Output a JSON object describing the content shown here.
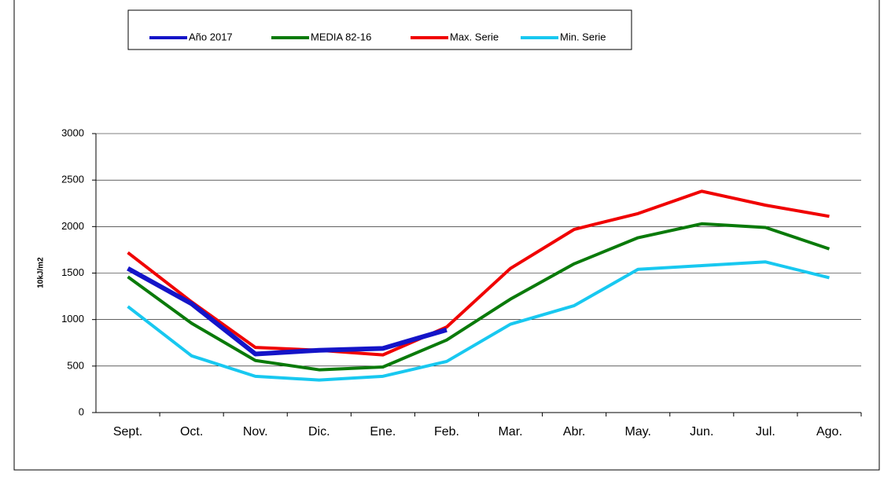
{
  "chart_data": {
    "type": "line",
    "y_label": "10kJ/m2",
    "categories": [
      "Sept.",
      "Oct.",
      "Nov.",
      "Dic.",
      "Ene.",
      "Feb.",
      "Mar.",
      "Abr.",
      "May.",
      "Jun.",
      "Jul.",
      "Ago."
    ],
    "series": [
      {
        "name": "Año 2017",
        "color": "#1414c8",
        "values": [
          1550,
          1170,
          630,
          670,
          690,
          890,
          null,
          null,
          null,
          null,
          null,
          null
        ]
      },
      {
        "name": "MEDIA 82-16",
        "color": "#0a7a0a",
        "values": [
          1460,
          960,
          560,
          460,
          490,
          780,
          1220,
          1600,
          1880,
          2030,
          1990,
          1760
        ]
      },
      {
        "name": "Max. Serie",
        "color": "#f00000",
        "values": [
          1720,
          1190,
          700,
          670,
          620,
          920,
          1550,
          1970,
          2140,
          2380,
          2230,
          2110
        ]
      },
      {
        "name": "Min. Serie",
        "color": "#18c8f0",
        "values": [
          1140,
          610,
          390,
          350,
          390,
          550,
          950,
          1150,
          1540,
          1580,
          1620,
          1450
        ]
      }
    ],
    "ylim": [
      0,
      3000
    ],
    "yticks": [
      0,
      500,
      1000,
      1500,
      2000,
      2500,
      3000
    ],
    "grid": true,
    "legend": "top"
  }
}
